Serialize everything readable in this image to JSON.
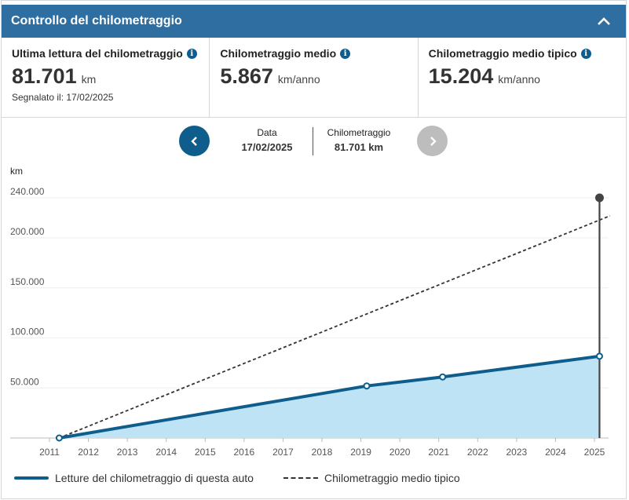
{
  "header": {
    "title": "Controllo del chilometraggio",
    "toggle_icon": "chevron-up-icon"
  },
  "stats": [
    {
      "label": "Ultima lettura del chilometraggio",
      "value": "81.701",
      "unit": "km",
      "sub": "Segnalato il: 17/02/2025"
    },
    {
      "label": "Chilometraggio medio",
      "value": "5.867",
      "unit": "km/anno"
    },
    {
      "label": "Chilometraggio medio tipico",
      "value": "15.204",
      "unit": "km/anno"
    }
  ],
  "nav": {
    "date_label": "Data",
    "date_value": "17/02/2025",
    "mileage_label": "Chilometraggio",
    "mileage_value": "81.701 km"
  },
  "chart_data": {
    "type": "area",
    "ylabel": "km",
    "ylim": [
      0,
      240000
    ],
    "yticks": [
      50000,
      100000,
      150000,
      200000,
      240000
    ],
    "ytick_labels": [
      "50.000",
      "100.000",
      "150.000",
      "200.000",
      "240.000"
    ],
    "xlim": [
      2011,
      2025.6
    ],
    "xticks": [
      2011,
      2012,
      2013,
      2014,
      2015,
      2016,
      2017,
      2018,
      2019,
      2020,
      2021,
      2022,
      2023,
      2024,
      2025
    ],
    "series": [
      {
        "name": "Letture del chilometraggio di questa auto",
        "style": "solid-area",
        "points": [
          [
            2011.25,
            0
          ],
          [
            2019.15,
            52000
          ],
          [
            2021.1,
            61000
          ],
          [
            2025.13,
            81701
          ]
        ]
      },
      {
        "name": "Chilometraggio medio tipico",
        "style": "dashed",
        "points": [
          [
            2011.25,
            0
          ],
          [
            2025.4,
            222000
          ]
        ]
      }
    ],
    "selected": {
      "x": 2025.13,
      "y": 81701
    },
    "colors": {
      "line": "#0f5d8c",
      "fill": "#bde3f5",
      "dashed": "#333333",
      "grid": "#eeeeee",
      "marker": "#444444"
    }
  }
}
